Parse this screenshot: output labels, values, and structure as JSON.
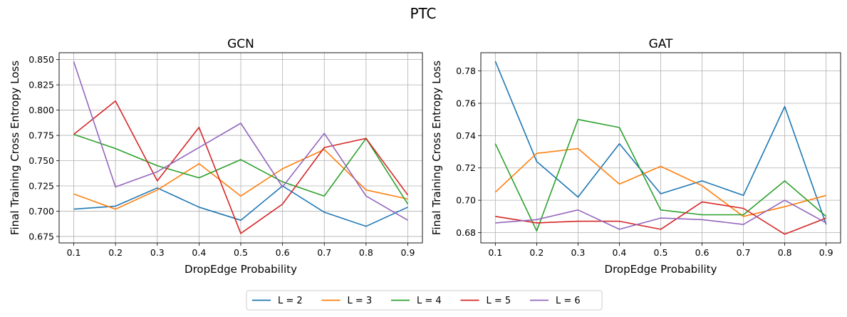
{
  "suptitle": "PTC",
  "colors": {
    "L = 2": "#1f77b4",
    "L = 3": "#ff7f0e",
    "L = 4": "#2ca02c",
    "L = 5": "#d62728",
    "L = 6": "#9467bd"
  },
  "legend": {
    "placement": "bottom-center",
    "entries": [
      "L = 2",
      "L = 3",
      "L = 4",
      "L = 5",
      "L = 6"
    ]
  },
  "chart_data": [
    {
      "type": "line",
      "title": "GCN",
      "xlabel": "DropEdge Probability",
      "ylabel": "Final Training Cross Entropy Loss",
      "grid": true,
      "x": [
        0.1,
        0.2,
        0.3,
        0.4,
        0.5,
        0.6,
        0.7,
        0.8,
        0.9
      ],
      "xticks": [
        "0.1",
        "0.2",
        "0.3",
        "0.4",
        "0.5",
        "0.6",
        "0.7",
        "0.8",
        "0.9"
      ],
      "yticks": [
        "0.675",
        "0.700",
        "0.725",
        "0.750",
        "0.775",
        "0.800",
        "0.825",
        "0.850"
      ],
      "xlim": [
        0.065,
        0.935
      ],
      "ylim": [
        0.6686,
        0.8568
      ],
      "series": [
        {
          "name": "L = 2",
          "values": [
            0.702,
            0.705,
            0.723,
            0.704,
            0.691,
            0.725,
            0.699,
            0.685,
            0.704
          ]
        },
        {
          "name": "L = 3",
          "values": [
            0.717,
            0.702,
            0.721,
            0.747,
            0.715,
            0.742,
            0.761,
            0.721,
            0.712
          ]
        },
        {
          "name": "L = 4",
          "values": [
            0.776,
            0.762,
            0.745,
            0.733,
            0.751,
            0.729,
            0.715,
            0.772,
            0.707
          ]
        },
        {
          "name": "L = 5",
          "values": [
            0.776,
            0.809,
            0.73,
            0.783,
            0.678,
            0.707,
            0.763,
            0.772,
            0.716
          ]
        },
        {
          "name": "L = 6",
          "values": [
            0.848,
            0.724,
            0.739,
            0.763,
            0.787,
            0.724,
            0.777,
            0.715,
            0.691
          ]
        }
      ]
    },
    {
      "type": "line",
      "title": "GAT",
      "xlabel": "DropEdge Probability",
      "ylabel": "Final Training Cross Entropy Loss",
      "grid": true,
      "x": [
        0.1,
        0.2,
        0.3,
        0.4,
        0.5,
        0.6,
        0.7,
        0.8,
        0.9
      ],
      "xticks": [
        "0.1",
        "0.2",
        "0.3",
        "0.4",
        "0.5",
        "0.6",
        "0.7",
        "0.8",
        "0.9"
      ],
      "yticks": [
        "0.68",
        "0.70",
        "0.72",
        "0.74",
        "0.76",
        "0.78"
      ],
      "xlim": [
        0.065,
        0.935
      ],
      "ylim": [
        0.6736,
        0.7913
      ],
      "series": [
        {
          "name": "L = 2",
          "values": [
            0.786,
            0.724,
            0.702,
            0.735,
            0.704,
            0.712,
            0.703,
            0.758,
            0.685
          ]
        },
        {
          "name": "L = 3",
          "values": [
            0.705,
            0.729,
            0.732,
            0.71,
            0.721,
            0.709,
            0.69,
            0.696,
            0.703
          ]
        },
        {
          "name": "L = 4",
          "values": [
            0.735,
            0.681,
            0.75,
            0.745,
            0.694,
            0.691,
            0.691,
            0.712,
            0.69
          ]
        },
        {
          "name": "L = 5",
          "values": [
            0.69,
            0.686,
            0.687,
            0.687,
            0.682,
            0.699,
            0.695,
            0.679,
            0.689
          ]
        },
        {
          "name": "L = 6",
          "values": [
            0.686,
            0.688,
            0.694,
            0.682,
            0.689,
            0.688,
            0.685,
            0.7,
            0.686
          ]
        }
      ]
    }
  ]
}
